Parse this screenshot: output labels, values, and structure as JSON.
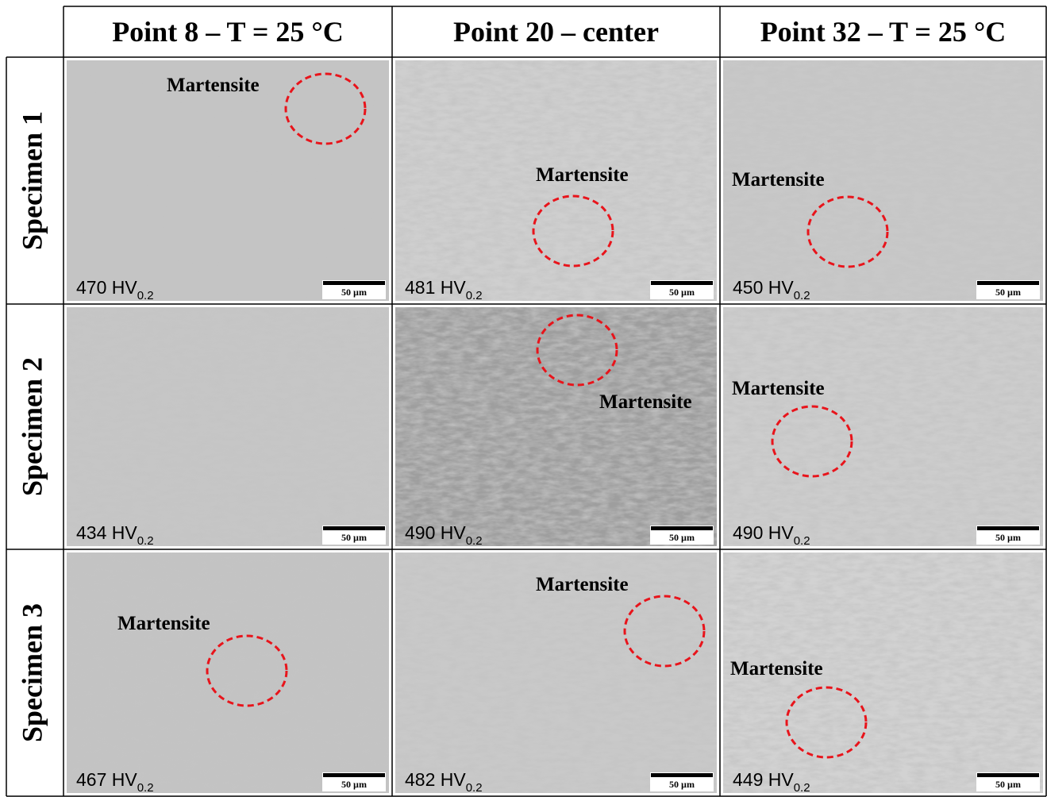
{
  "header": {
    "columns": [
      "Point 8 – T = 25 °C",
      "Point 20 – center",
      "Point 32 – T = 25 °C"
    ]
  },
  "rows": [
    {
      "label": "Specimen 1",
      "cells": [
        {
          "hardness": "470",
          "unit": "HV",
          "subscript": "0.2",
          "scale_bar": "50 µm",
          "annotation": "Martensite"
        },
        {
          "hardness": "481",
          "unit": "HV",
          "subscript": "0.2",
          "scale_bar": "50 µm",
          "annotation": "Martensite"
        },
        {
          "hardness": "450",
          "unit": "HV",
          "subscript": "0.2",
          "scale_bar": "50 µm",
          "annotation": "Martensite"
        }
      ]
    },
    {
      "label": "Specimen 2",
      "cells": [
        {
          "hardness": "434",
          "unit": "HV",
          "subscript": "0.2",
          "scale_bar": "50 µm"
        },
        {
          "hardness": "490",
          "unit": "HV",
          "subscript": "0.2",
          "scale_bar": "50 µm",
          "annotation": "Martensite"
        },
        {
          "hardness": "490",
          "unit": "HV",
          "subscript": "0.2",
          "scale_bar": "50 µm",
          "annotation": "Martensite"
        }
      ]
    },
    {
      "label": "Specimen 3",
      "cells": [
        {
          "hardness": "467",
          "unit": "HV",
          "subscript": "0.2",
          "scale_bar": "50 µm",
          "annotation": "Martensite"
        },
        {
          "hardness": "482",
          "unit": "HV",
          "subscript": "0.2",
          "scale_bar": "50 µm",
          "annotation": "Martensite"
        },
        {
          "hardness": "449",
          "unit": "HV",
          "subscript": "0.2",
          "scale_bar": "50 µm",
          "annotation": "Martensite"
        }
      ]
    }
  ]
}
